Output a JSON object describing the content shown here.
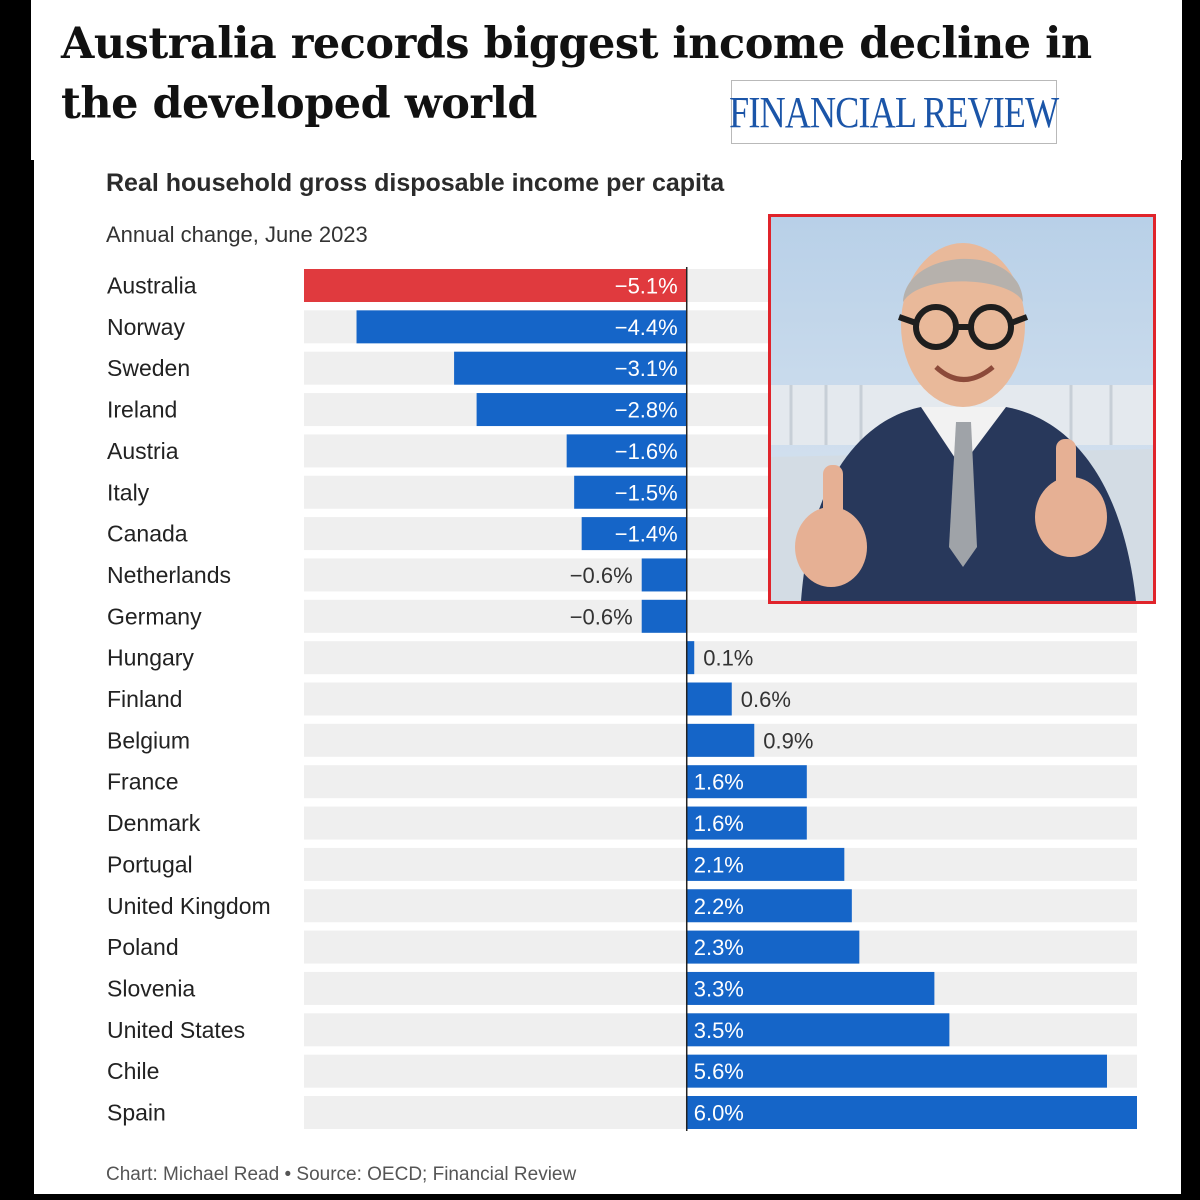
{
  "header": {
    "headline": "Australia records biggest income decline in the developed world",
    "masthead": "FINANCIAL REVIEW"
  },
  "chart_data": {
    "type": "bar",
    "orientation": "horizontal",
    "title": "Real household gross disposable income per capita",
    "subtitle": "Annual change, June 2023",
    "credit": "Chart: Michael Read • Source: OECD; Financial Review",
    "categories": [
      "Australia",
      "Norway",
      "Sweden",
      "Ireland",
      "Austria",
      "Italy",
      "Canada",
      "Netherlands",
      "Germany",
      "Hungary",
      "Finland",
      "Belgium",
      "France",
      "Denmark",
      "Portugal",
      "United Kingdom",
      "Poland",
      "Slovenia",
      "United States",
      "Chile",
      "Spain"
    ],
    "values": [
      -5.1,
      -4.4,
      -3.1,
      -2.8,
      -1.6,
      -1.5,
      -1.4,
      -0.6,
      -0.6,
      0.1,
      0.6,
      0.9,
      1.6,
      1.6,
      2.1,
      2.2,
      2.3,
      3.3,
      3.5,
      5.6,
      6.0
    ],
    "value_labels": [
      "−5.1%",
      "−4.4%",
      "−3.1%",
      "−2.8%",
      "−1.6%",
      "−1.5%",
      "−1.4%",
      "−0.6%",
      "−0.6%",
      "0.1%",
      "0.6%",
      "0.9%",
      "1.6%",
      "1.6%",
      "2.1%",
      "2.2%",
      "2.3%",
      "3.3%",
      "3.5%",
      "5.6%",
      "6.0%"
    ],
    "xlim": [
      -5.1,
      6.0
    ],
    "colors": {
      "highlight": "#e03a3e",
      "bar": "#1565c8",
      "track": "#efefef",
      "axis": "#222222"
    },
    "highlight_index": 0
  },
  "photo": {
    "icon": "person-thumbs-up-photo"
  }
}
